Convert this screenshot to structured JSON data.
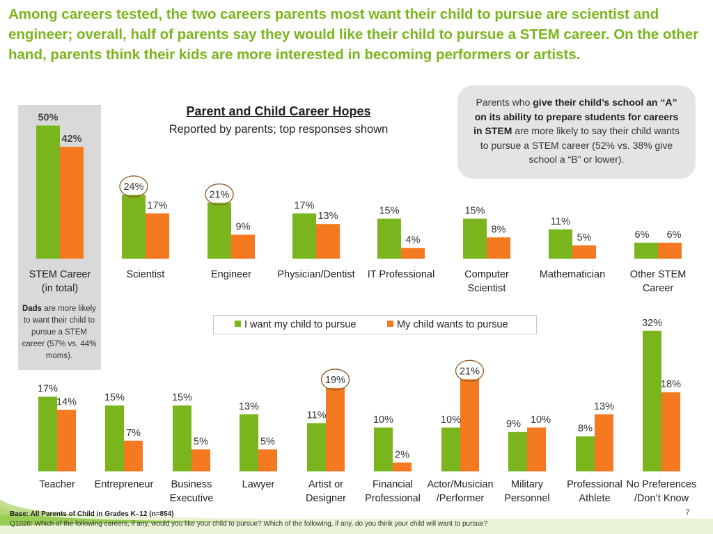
{
  "headline": "Among careers tested, the two careers parents most want their child to pursue are scientist and engineer; overall, half of parents say they would like their child to pursue a STEM career. On the other hand, parents think their kids are more interested in becoming performers or artists.",
  "callout": {
    "pre": "Parents who ",
    "bold": "give their child’s school an “A” on its ability to prepare students for careers in STEM",
    "post": " are more likely to say their child wants to pursue a STEM career (52% vs. 38% give school a “B” or lower)."
  },
  "dads_note": {
    "bold": "Dads",
    "rest": " are more likely to want their child to pursue a STEM career (57% vs. 44% moms)."
  },
  "footer": {
    "base": "Base: All Parents of Child in Grades K–12 (n=854)",
    "question": "Q1020: Which of the following careers, if any, would you like your child to pursue? Which of the following, if any, do you think your child will want to pursue?",
    "page_number": "7"
  },
  "colors": {
    "green": "#7ab51d",
    "orange": "#f47920",
    "circle": "#8a5a2b"
  },
  "chart_data": {
    "type": "bar",
    "title": "Parent and Child Career Hopes",
    "subtitle": "Reported by parents; top responses shown",
    "series": [
      {
        "name": "I want my child to pursue",
        "color": "#7ab51d"
      },
      {
        "name": "My child wants to pursue",
        "color": "#f47920"
      }
    ],
    "panels": [
      {
        "id": "stem",
        "categories": [
          "STEM Career (in total)",
          "Scientist",
          "Engineer",
          "Physician/Dentist",
          "IT Professional",
          "Computer Scientist",
          "Mathematician",
          "Other STEM Career"
        ],
        "label_lines": [
          [
            "STEM Career",
            "(in total)"
          ],
          [
            "Scientist"
          ],
          [
            "Engineer"
          ],
          [
            "Physician/Dentist"
          ],
          [
            "IT Professional"
          ],
          [
            "Computer",
            "Scientist"
          ],
          [
            "Mathematician"
          ],
          [
            "Other STEM",
            "Career"
          ]
        ],
        "want": [
          50,
          24,
          21,
          17,
          15,
          15,
          11,
          6
        ],
        "child": [
          42,
          17,
          9,
          13,
          4,
          8,
          5,
          6
        ],
        "want_labels": [
          "50%",
          "24%",
          "21%",
          "17%",
          "15%",
          "15%",
          "11%",
          "6%"
        ],
        "child_labels": [
          "42%",
          "17%",
          "9%",
          "13%",
          "4%",
          "8%",
          "5%",
          "6%"
        ],
        "circled": [
          "want-1",
          "want-2"
        ]
      },
      {
        "id": "non-stem",
        "categories": [
          "Teacher",
          "Entrepreneur",
          "Business Executive",
          "Lawyer",
          "Artist or Designer",
          "Financial Professional",
          "Actor/Musician /Performer",
          "Military Personnel",
          "Professional Athlete",
          "No Preferences /Don’t Know"
        ],
        "label_lines": [
          [
            "Teacher"
          ],
          [
            "Entrepreneur"
          ],
          [
            "Business",
            "Executive"
          ],
          [
            "Lawyer"
          ],
          [
            "Artist or",
            "Designer"
          ],
          [
            "Financial",
            "Professional"
          ],
          [
            "Actor/Musician",
            "/Performer"
          ],
          [
            "Military",
            "Personnel"
          ],
          [
            "Professional",
            "Athlete"
          ],
          [
            "No Preferences",
            "/Don’t Know"
          ]
        ],
        "want": [
          17,
          15,
          15,
          13,
          11,
          10,
          10,
          9,
          8,
          32
        ],
        "child": [
          14,
          7,
          5,
          5,
          19,
          2,
          21,
          10,
          13,
          18
        ],
        "want_labels": [
          "17%",
          "15%",
          "15%",
          "13%",
          "11%",
          "10%",
          "10%",
          "9%",
          "8%",
          "32%"
        ],
        "child_labels": [
          "14%",
          "7%",
          "5%",
          "5%",
          "19%",
          "2%",
          "21%",
          "10%",
          "13%",
          "18%"
        ],
        "circled": [
          "child-4",
          "child-6"
        ]
      }
    ]
  }
}
